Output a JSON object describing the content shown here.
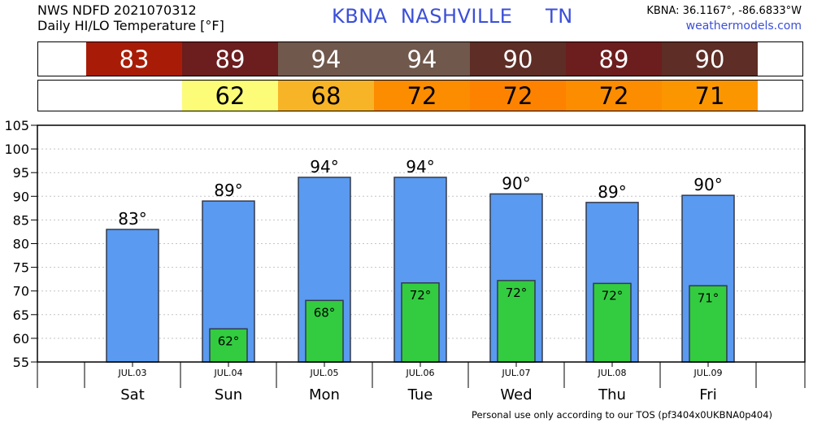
{
  "header": {
    "line1": "NWS NDFD 2021070312",
    "line2": "Daily HI/LO Temperature [°F]",
    "station": "KBNA  NASHVILLE     TN",
    "coords": "KBNA: 36.1167°, -86.6833°W",
    "site": "weathermodels.com"
  },
  "hi_strip": [
    {
      "value": "83",
      "color": "#a81c07"
    },
    {
      "value": "89",
      "color": "#6c1d1e"
    },
    {
      "value": "94",
      "color": "#70584c"
    },
    {
      "value": "94",
      "color": "#70584c"
    },
    {
      "value": "90",
      "color": "#5e2d25"
    },
    {
      "value": "89",
      "color": "#6c1d1e"
    },
    {
      "value": "90",
      "color": "#5e2d25"
    }
  ],
  "lo_strip": [
    {
      "value": "",
      "color": "#ffffff"
    },
    {
      "value": "62",
      "color": "#fcfc78"
    },
    {
      "value": "68",
      "color": "#f8b427"
    },
    {
      "value": "72",
      "color": "#fc8c00"
    },
    {
      "value": "72",
      "color": "#fc8200"
    },
    {
      "value": "72",
      "color": "#fc8c00"
    },
    {
      "value": "71",
      "color": "#fc9600"
    }
  ],
  "chart_data": {
    "type": "bar",
    "categories": [
      "JUL.03",
      "JUL.04",
      "JUL.05",
      "JUL.06",
      "JUL.07",
      "JUL.08",
      "JUL.09"
    ],
    "days": [
      "Sat",
      "Sun",
      "Mon",
      "Tue",
      "Wed",
      "Thu",
      "Fri"
    ],
    "series": [
      {
        "values": [
          83,
          89,
          94,
          94,
          90.5,
          88.7,
          90.2
        ],
        "labels": [
          "83°",
          "89°",
          "94°",
          "94°",
          "90°",
          "89°",
          "90°"
        ],
        "color": "#5a9af0"
      },
      {
        "values": [
          null,
          62,
          68,
          71.7,
          72.2,
          71.6,
          71.1
        ],
        "labels": [
          "",
          "62°",
          "68°",
          "72°",
          "72°",
          "72°",
          "71°"
        ],
        "color": "#33cc40"
      }
    ],
    "yticks": [
      55,
      60,
      65,
      70,
      75,
      80,
      85,
      90,
      95,
      100,
      105
    ],
    "ylim": [
      55,
      105
    ],
    "grid": true
  },
  "footer": "Personal use only according to our TOS (pf3404x0UKBNA0p404)"
}
